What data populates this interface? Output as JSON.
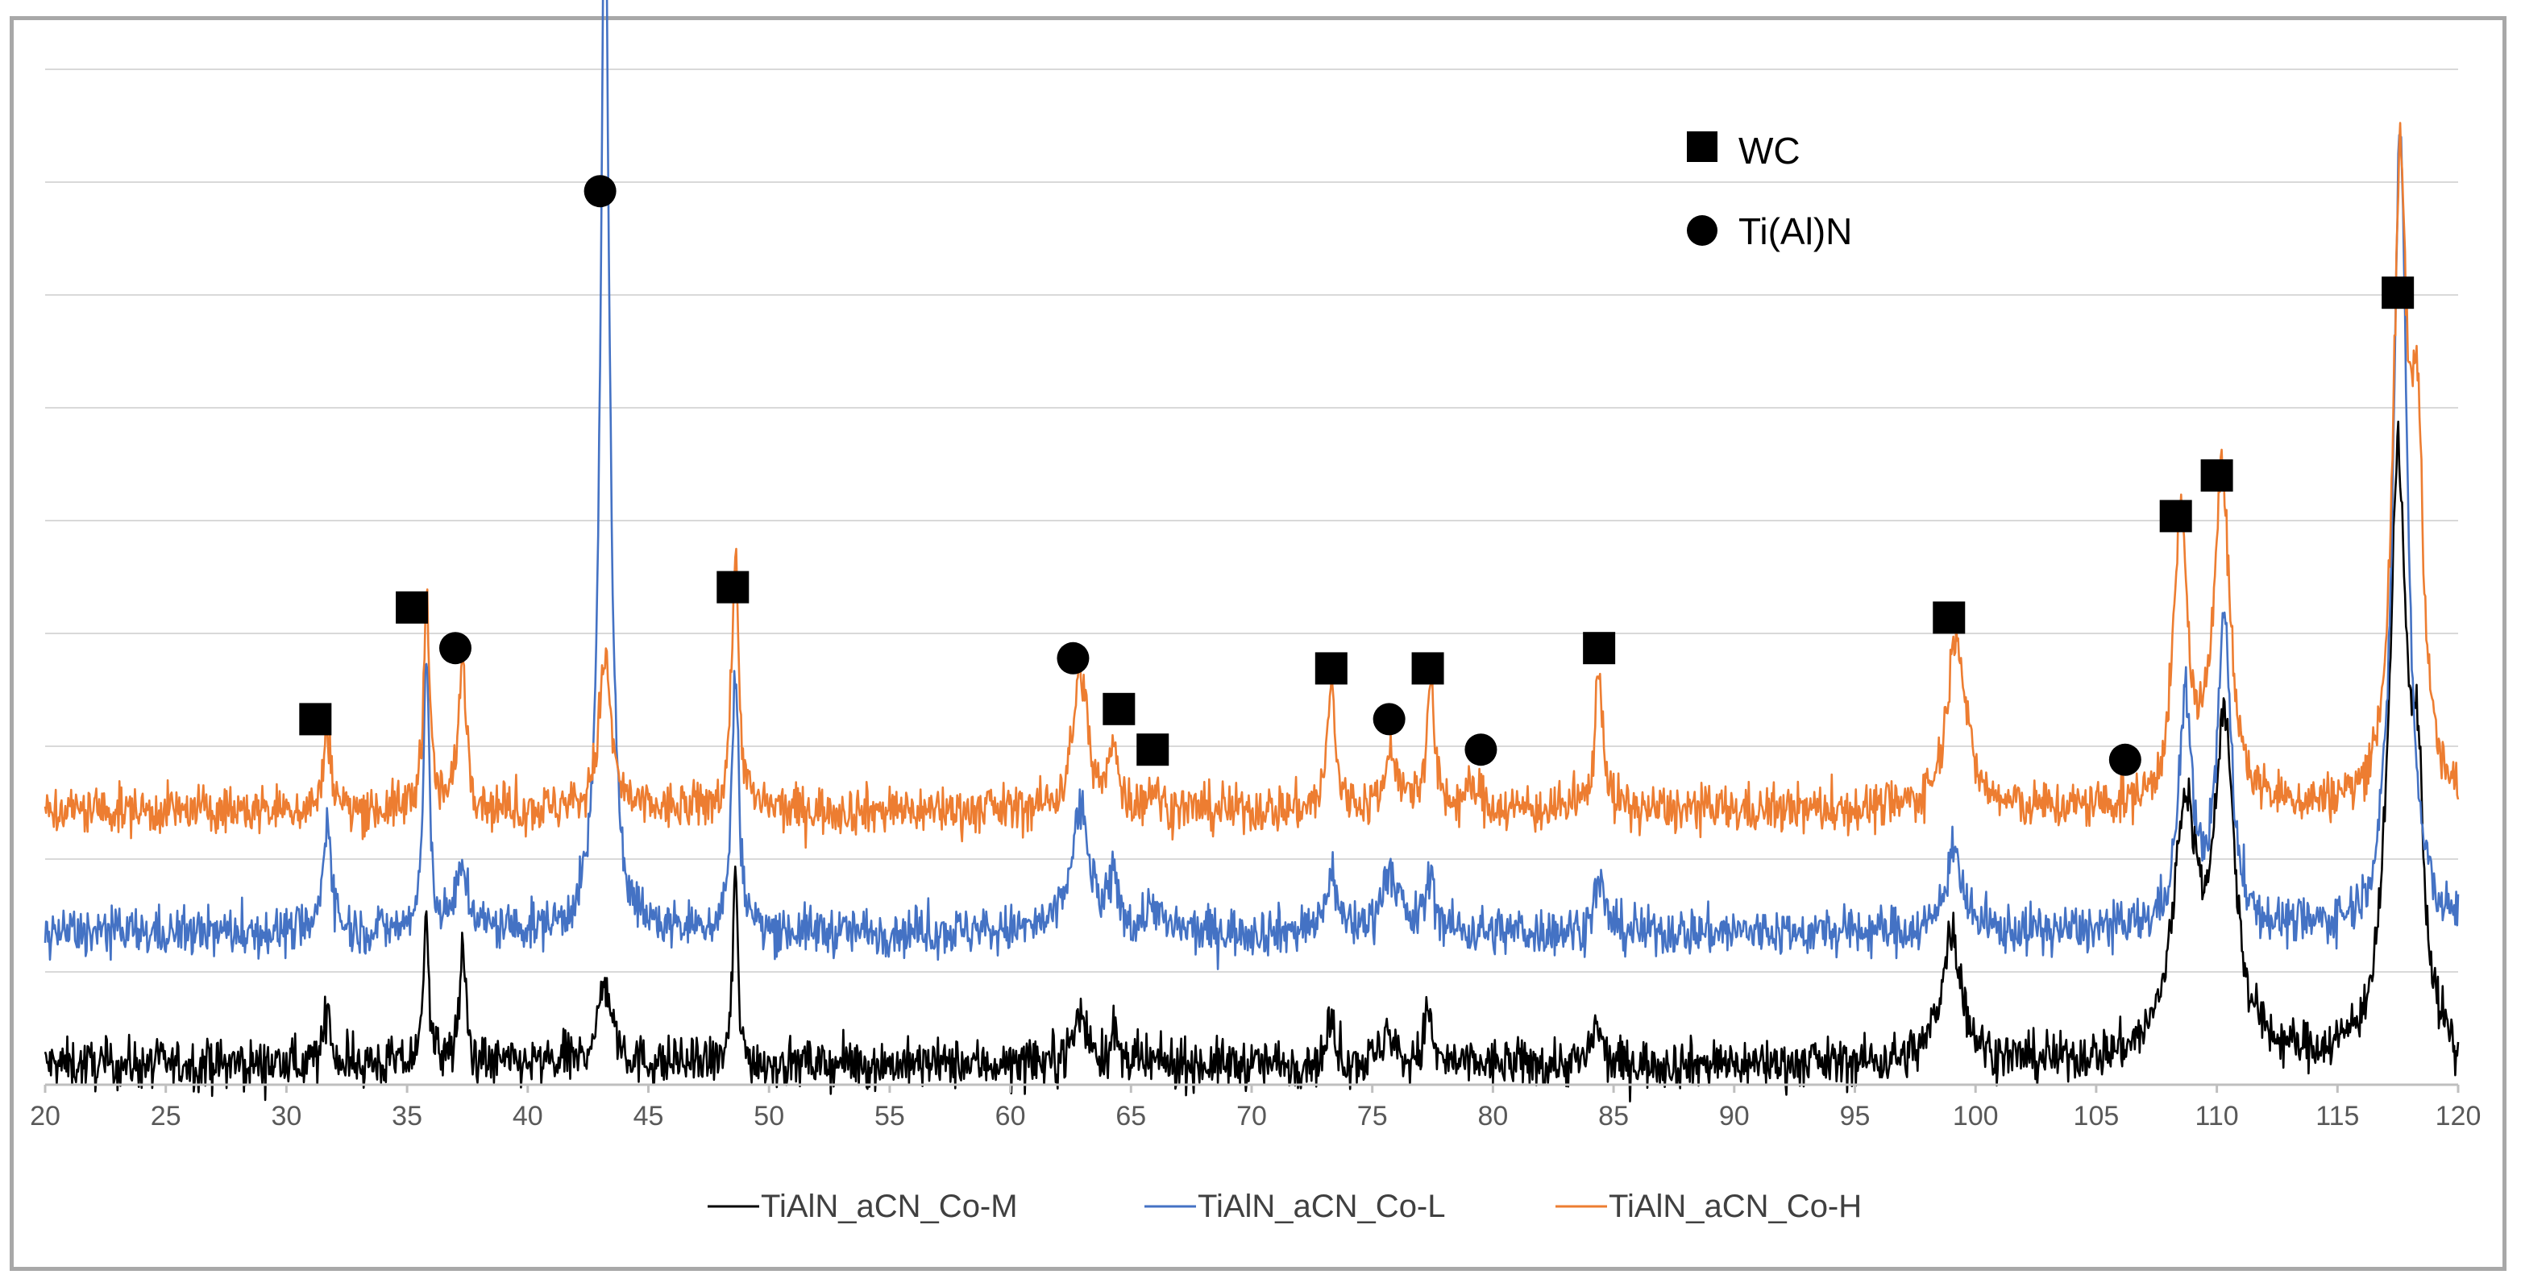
{
  "chart_data": {
    "type": "line",
    "title": "",
    "xlabel": "",
    "ylabel": "",
    "xlim": [
      20,
      120
    ],
    "x_ticks": [
      20,
      25,
      30,
      35,
      40,
      45,
      50,
      55,
      60,
      65,
      70,
      75,
      80,
      85,
      90,
      95,
      100,
      105,
      110,
      115,
      120
    ],
    "gridlines": 9,
    "grid": true,
    "legend": "bottom",
    "series": [
      {
        "name": "TiAlN_aCN_Co-M",
        "color": "#000000",
        "baseline": 0.02,
        "noise": 0.012,
        "peaks": [
          {
            "x": 31.7,
            "h": 0.06,
            "w": 0.15
          },
          {
            "x": 35.8,
            "h": 0.16,
            "w": 0.12
          },
          {
            "x": 37.3,
            "h": 0.11,
            "w": 0.16
          },
          {
            "x": 43.2,
            "h": 0.08,
            "w": 0.35
          },
          {
            "x": 48.6,
            "h": 0.19,
            "w": 0.12
          },
          {
            "x": 62.9,
            "h": 0.05,
            "w": 0.35
          },
          {
            "x": 64.3,
            "h": 0.03,
            "w": 0.15
          },
          {
            "x": 73.3,
            "h": 0.04,
            "w": 0.2
          },
          {
            "x": 75.6,
            "h": 0.03,
            "w": 0.3
          },
          {
            "x": 77.3,
            "h": 0.06,
            "w": 0.15
          },
          {
            "x": 84.3,
            "h": 0.04,
            "w": 0.2
          },
          {
            "x": 99.0,
            "h": 0.13,
            "w": 0.5
          },
          {
            "x": 108.7,
            "h": 0.24,
            "w": 0.6
          },
          {
            "x": 110.3,
            "h": 0.32,
            "w": 0.5
          },
          {
            "x": 117.5,
            "h": 0.57,
            "w": 0.45
          },
          {
            "x": 118.3,
            "h": 0.22,
            "w": 0.3
          }
        ]
      },
      {
        "name": "TiAlN_aCN_Co-L",
        "color": "#4472c4",
        "baseline": 0.15,
        "noise": 0.012,
        "peaks": [
          {
            "x": 31.7,
            "h": 0.12,
            "w": 0.18
          },
          {
            "x": 35.8,
            "h": 0.26,
            "w": 0.15
          },
          {
            "x": 37.3,
            "h": 0.06,
            "w": 0.3
          },
          {
            "x": 43.2,
            "h": 1.04,
            "w": 0.22
          },
          {
            "x": 48.6,
            "h": 0.25,
            "w": 0.18
          },
          {
            "x": 62.9,
            "h": 0.12,
            "w": 0.45
          },
          {
            "x": 64.3,
            "h": 0.05,
            "w": 0.2
          },
          {
            "x": 65.9,
            "h": 0.03,
            "w": 0.25
          },
          {
            "x": 73.3,
            "h": 0.06,
            "w": 0.25
          },
          {
            "x": 75.7,
            "h": 0.06,
            "w": 0.4
          },
          {
            "x": 77.4,
            "h": 0.05,
            "w": 0.25
          },
          {
            "x": 84.4,
            "h": 0.05,
            "w": 0.25
          },
          {
            "x": 99.1,
            "h": 0.09,
            "w": 0.35
          },
          {
            "x": 108.7,
            "h": 0.22,
            "w": 0.35
          },
          {
            "x": 110.3,
            "h": 0.3,
            "w": 0.35
          },
          {
            "x": 117.6,
            "h": 0.79,
            "w": 0.35
          }
        ]
      },
      {
        "name": "TiAlN_aCN_Co-H",
        "color": "#ed7d31",
        "baseline": 0.27,
        "noise": 0.012,
        "peaks": [
          {
            "x": 31.7,
            "h": 0.08,
            "w": 0.18
          },
          {
            "x": 35.8,
            "h": 0.21,
            "w": 0.15
          },
          {
            "x": 37.3,
            "h": 0.15,
            "w": 0.2
          },
          {
            "x": 43.2,
            "h": 0.15,
            "w": 0.3
          },
          {
            "x": 48.6,
            "h": 0.25,
            "w": 0.18
          },
          {
            "x": 62.9,
            "h": 0.14,
            "w": 0.35
          },
          {
            "x": 64.3,
            "h": 0.07,
            "w": 0.18
          },
          {
            "x": 65.9,
            "h": 0.02,
            "w": 0.25
          },
          {
            "x": 73.3,
            "h": 0.12,
            "w": 0.2
          },
          {
            "x": 75.8,
            "h": 0.06,
            "w": 0.3
          },
          {
            "x": 77.4,
            "h": 0.12,
            "w": 0.2
          },
          {
            "x": 79.2,
            "h": 0.02,
            "w": 0.4
          },
          {
            "x": 84.4,
            "h": 0.14,
            "w": 0.2
          },
          {
            "x": 99.2,
            "h": 0.18,
            "w": 0.45
          },
          {
            "x": 108.5,
            "h": 0.28,
            "w": 0.35
          },
          {
            "x": 110.2,
            "h": 0.33,
            "w": 0.4
          },
          {
            "x": 117.6,
            "h": 0.6,
            "w": 0.35
          },
          {
            "x": 118.3,
            "h": 0.33,
            "w": 0.3
          }
        ]
      }
    ],
    "phase_markers": [
      {
        "symbol": "square",
        "x": 31.2,
        "y": 0.36
      },
      {
        "symbol": "square",
        "x": 35.2,
        "y": 0.47
      },
      {
        "symbol": "circle",
        "x": 37.0,
        "y": 0.43
      },
      {
        "symbol": "circle",
        "x": 43.0,
        "y": 0.88
      },
      {
        "symbol": "square",
        "x": 48.5,
        "y": 0.49
      },
      {
        "symbol": "circle",
        "x": 62.6,
        "y": 0.42
      },
      {
        "symbol": "square",
        "x": 64.5,
        "y": 0.37
      },
      {
        "symbol": "square",
        "x": 65.9,
        "y": 0.33
      },
      {
        "symbol": "square",
        "x": 73.3,
        "y": 0.41
      },
      {
        "symbol": "circle",
        "x": 75.7,
        "y": 0.36
      },
      {
        "symbol": "square",
        "x": 77.3,
        "y": 0.41
      },
      {
        "symbol": "circle",
        "x": 79.5,
        "y": 0.33
      },
      {
        "symbol": "square",
        "x": 84.4,
        "y": 0.43
      },
      {
        "symbol": "square",
        "x": 98.9,
        "y": 0.46
      },
      {
        "symbol": "circle",
        "x": 106.2,
        "y": 0.32
      },
      {
        "symbol": "square",
        "x": 108.3,
        "y": 0.56
      },
      {
        "symbol": "square",
        "x": 110.0,
        "y": 0.6
      },
      {
        "symbol": "square",
        "x": 117.5,
        "y": 0.78
      }
    ],
    "marker_legend": [
      {
        "symbol": "square",
        "label": "WC"
      },
      {
        "symbol": "circle",
        "label": "Ti(Al)N"
      }
    ]
  }
}
